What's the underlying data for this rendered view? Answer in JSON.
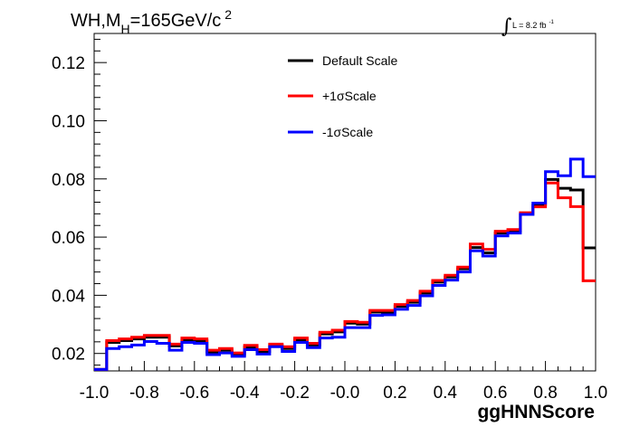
{
  "title": {
    "main": "WH,M",
    "sub": "H",
    "rest": "=165GeV/c",
    "sup": "2"
  },
  "lumi": {
    "symbol": "∫",
    "label": "L = 8.2 fb",
    "sup": "-1"
  },
  "colors": {
    "default": "#000000",
    "plus": "#ff0000",
    "minus": "#0000ff"
  },
  "chart_data": {
    "type": "line",
    "step": true,
    "xlabel": "ggHNNScore",
    "ylabel": "",
    "xlim": [
      -1.0,
      1.0
    ],
    "ylim": [
      0.014,
      0.13
    ],
    "x_ticks": [
      "-1.0",
      "-0.8",
      "-0.6",
      "-0.4",
      "-0.2",
      "-0.0",
      "0.2",
      "0.4",
      "0.6",
      "0.8",
      "1.0"
    ],
    "x_tick_values": [
      -1.0,
      -0.8,
      -0.6,
      -0.4,
      -0.2,
      0.0,
      0.2,
      0.4,
      0.6,
      0.8,
      1.0
    ],
    "y_ticks": [
      "0.02",
      "0.04",
      "0.06",
      "0.08",
      "0.10",
      "0.12"
    ],
    "y_tick_values": [
      0.02,
      0.04,
      0.06,
      0.08,
      0.1,
      0.12
    ],
    "bin_edges": [
      -1.0,
      -0.95,
      -0.9,
      -0.85,
      -0.8,
      -0.75,
      -0.7,
      -0.65,
      -0.6,
      -0.55,
      -0.5,
      -0.45,
      -0.4,
      -0.35,
      -0.3,
      -0.25,
      -0.2,
      -0.15,
      -0.1,
      -0.05,
      0.0,
      0.05,
      0.1,
      0.15,
      0.2,
      0.25,
      0.3,
      0.35,
      0.4,
      0.45,
      0.5,
      0.55,
      0.6,
      0.65,
      0.7,
      0.75,
      0.8,
      0.85,
      0.9,
      0.95,
      1.0
    ],
    "legend_position": "top-center",
    "series": [
      {
        "name": "Default Scale",
        "color": "#000000",
        "values": [
          0.0145,
          0.0238,
          0.0244,
          0.025,
          0.0256,
          0.0256,
          0.0226,
          0.0247,
          0.0244,
          0.0205,
          0.0211,
          0.0196,
          0.0222,
          0.0207,
          0.0228,
          0.0217,
          0.0247,
          0.0229,
          0.0267,
          0.0274,
          0.0304,
          0.0301,
          0.0342,
          0.0342,
          0.0362,
          0.0376,
          0.0408,
          0.0445,
          0.0463,
          0.0491,
          0.0564,
          0.0546,
          0.0614,
          0.062,
          0.0678,
          0.071,
          0.0798,
          0.0768,
          0.0762,
          0.0563
        ]
      },
      {
        "name": "+1σScale",
        "color": "#ff0000",
        "values": [
          0.0145,
          0.0244,
          0.025,
          0.0256,
          0.0262,
          0.0262,
          0.0232,
          0.0253,
          0.025,
          0.0211,
          0.0217,
          0.0202,
          0.0228,
          0.0213,
          0.0232,
          0.0223,
          0.0253,
          0.0235,
          0.0273,
          0.028,
          0.031,
          0.0307,
          0.0348,
          0.0348,
          0.0368,
          0.0382,
          0.0414,
          0.0451,
          0.0469,
          0.0497,
          0.0576,
          0.0558,
          0.062,
          0.0626,
          0.0684,
          0.0704,
          0.0786,
          0.0735,
          0.0705,
          0.045
        ]
      },
      {
        "name": "-1σScale",
        "color": "#0000ff",
        "values": [
          0.0145,
          0.0217,
          0.0223,
          0.0229,
          0.0241,
          0.0235,
          0.0211,
          0.0238,
          0.0235,
          0.0196,
          0.0202,
          0.019,
          0.0213,
          0.0198,
          0.0223,
          0.0207,
          0.0238,
          0.022,
          0.0253,
          0.0256,
          0.0289,
          0.0289,
          0.0331,
          0.0333,
          0.0352,
          0.0365,
          0.0398,
          0.0434,
          0.0452,
          0.048,
          0.0553,
          0.0535,
          0.0604,
          0.0614,
          0.0678,
          0.0717,
          0.0825,
          0.0811,
          0.0868,
          0.0808
        ]
      }
    ]
  }
}
